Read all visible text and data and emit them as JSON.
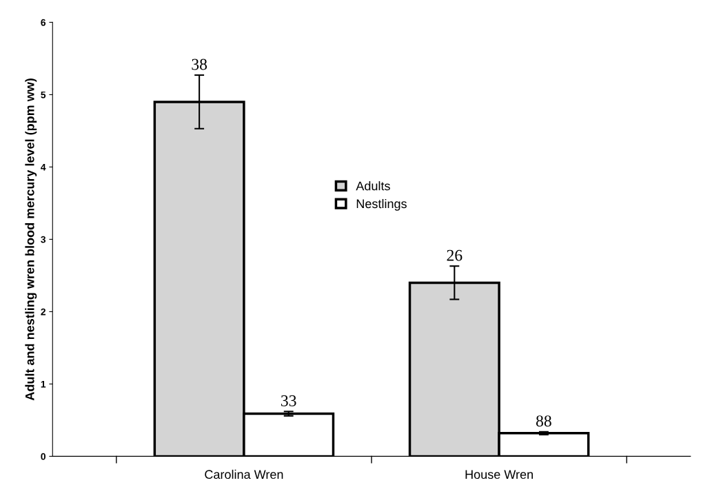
{
  "chart_data": {
    "type": "bar",
    "ylabel": "Adult and nestling wren blood mercury level (ppm ww)",
    "categories": [
      "Carolina Wren",
      "House Wren"
    ],
    "series": [
      {
        "name": "Adults",
        "color": "#d4d4d4",
        "values": [
          4.9,
          2.4
        ],
        "errors": [
          0.37,
          0.23
        ]
      },
      {
        "name": "Nestlings",
        "color": "#ffffff",
        "values": [
          0.59,
          0.32
        ],
        "errors": [
          0.03,
          0.02
        ]
      }
    ],
    "annotations": [
      "38",
      "33",
      "26",
      "88"
    ],
    "ylim": [
      0,
      6
    ],
    "yticks": [
      0,
      1,
      2,
      3,
      4,
      5,
      6
    ],
    "grid": false,
    "legend": "center"
  }
}
